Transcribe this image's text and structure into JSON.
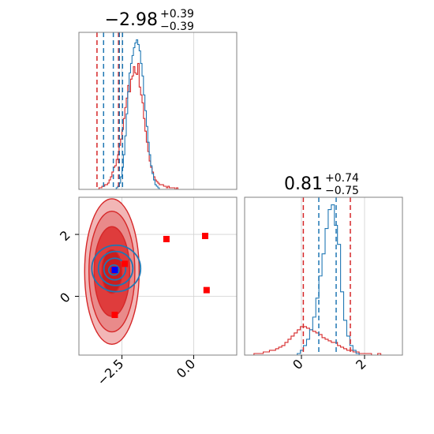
{
  "colors": {
    "blue": "#1f77b4",
    "red": "#d62728",
    "marker_red": "#ff0000",
    "marker_blue": "#0000ff",
    "grid": "#d0d0d0",
    "frame": "#808080"
  },
  "titles": {
    "p1": {
      "main": "−2.98",
      "sup": "+0.39",
      "sub": "−0.39"
    },
    "p2": {
      "main": "0.81",
      "sup": "+0.74",
      "sub": "−0.75"
    }
  },
  "ticks": {
    "x1": [
      {
        "v": -2.5,
        "label": "−2.5"
      },
      {
        "v": 0.0,
        "label": "0.0"
      }
    ],
    "y2": [
      {
        "v": 0,
        "label": "0"
      },
      {
        "v": 2,
        "label": "2"
      }
    ],
    "x2": [
      {
        "v": 0,
        "label": "0"
      },
      {
        "v": 2,
        "label": "2"
      }
    ]
  },
  "chart_data": [
    {
      "panel": "marginal-1",
      "type": "line",
      "xlim": [
        -4.0,
        1.5
      ],
      "x_range_hist": [
        -3.6,
        0.0
      ],
      "series": [
        {
          "color": "#d62728",
          "values": [
            0,
            0,
            0,
            0,
            0,
            0,
            1,
            1,
            2,
            2,
            3,
            3,
            4,
            6,
            8,
            11,
            14,
            15,
            19,
            22,
            28,
            32,
            38,
            45,
            52,
            58,
            66,
            62,
            70,
            72,
            78,
            74,
            73,
            80,
            65,
            60,
            55,
            45,
            37,
            30,
            24,
            18,
            14,
            11,
            8,
            6,
            5,
            4,
            3,
            3,
            3,
            2,
            2,
            1,
            2,
            1,
            1,
            1,
            1,
            0,
            1,
            0,
            0,
            0,
            0,
            0,
            0,
            0,
            0,
            0,
            0,
            0
          ]
        },
        {
          "color": "#1f77b4",
          "values": [
            0,
            0,
            0,
            0,
            0,
            0,
            0,
            0,
            0,
            0,
            0,
            0,
            0,
            0,
            0,
            0,
            0,
            0,
            1,
            2,
            4,
            8,
            14,
            22,
            34,
            48,
            62,
            74,
            80,
            85,
            90,
            93,
            95,
            92,
            88,
            80,
            72,
            60,
            50,
            40,
            30,
            22,
            15,
            10,
            6,
            3,
            2,
            1,
            0,
            0,
            0,
            0,
            0,
            0,
            0,
            0,
            0,
            0,
            0,
            0,
            0,
            0,
            0,
            0,
            0,
            0,
            0,
            0,
            0,
            0,
            0,
            0
          ]
        }
      ],
      "vlines": [
        {
          "x": -3.37,
          "color": "#d62728"
        },
        {
          "x": -2.62,
          "color": "#d62728"
        },
        {
          "x": -3.14,
          "color": "#1f77b4"
        },
        {
          "x": -2.59,
          "color": "#1f77b4"
        },
        {
          "x": -2.8,
          "color": "#1f77b4"
        },
        {
          "x": -2.48,
          "color": "#1f77b4"
        }
      ]
    },
    {
      "panel": "joint",
      "type": "scatter",
      "xlim": [
        -4.0,
        1.5
      ],
      "ylim": [
        -1.9,
        3.2
      ],
      "red_contours": [
        {
          "cx": -2.85,
          "cy": 0.8,
          "rx": 0.95,
          "ry": 2.35,
          "fill": "#f2b6b6"
        },
        {
          "cx": -2.85,
          "cy": 0.8,
          "rx": 0.8,
          "ry": 1.95,
          "fill": "#e98a8a"
        },
        {
          "cx": -2.85,
          "cy": 0.8,
          "rx": 0.62,
          "ry": 1.45,
          "fill": "#df3c3c"
        },
        {
          "cx": -2.85,
          "cy": 0.8,
          "rx": 0.35,
          "ry": 0.7,
          "fill": "#c91e1e"
        }
      ],
      "blue_contours": [
        {
          "cx": -2.7,
          "cy": 0.9,
          "rx": 0.85,
          "ry": 0.75
        },
        {
          "cx": -2.72,
          "cy": 0.9,
          "rx": 0.6,
          "ry": 0.55
        },
        {
          "cx": -2.75,
          "cy": 0.88,
          "rx": 0.38,
          "ry": 0.35
        },
        {
          "cx": -2.78,
          "cy": 0.85,
          "rx": 0.18,
          "ry": 0.16
        }
      ],
      "red_markers": [
        {
          "x": -2.75,
          "y": -0.6
        },
        {
          "x": -2.4,
          "y": 1.05
        },
        {
          "x": -0.95,
          "y": 1.85
        },
        {
          "x": 0.4,
          "y": 1.95
        },
        {
          "x": 0.45,
          "y": 0.2
        }
      ],
      "blue_markers": [
        {
          "x": -2.75,
          "y": 0.85
        }
      ]
    },
    {
      "panel": "marginal-2",
      "type": "line",
      "xlim": [
        -1.8,
        3.2
      ],
      "x_range_hist": [
        -1.7,
        3.2
      ],
      "series": [
        {
          "color": "#d62728",
          "values": [
            0,
            0,
            1,
            1,
            1,
            2,
            2,
            3,
            3,
            4,
            5,
            6,
            8,
            10,
            12,
            14,
            16,
            18,
            18,
            17,
            16,
            15,
            14,
            13,
            11,
            10,
            9,
            8,
            8,
            6,
            5,
            4,
            3,
            3,
            2,
            2,
            1,
            1,
            1,
            1,
            0,
            0,
            1,
            0,
            0,
            0,
            0,
            0,
            0,
            0
          ]
        },
        {
          "color": "#1f77b4",
          "values": [
            0,
            0,
            0,
            0,
            0,
            0,
            0,
            0,
            0,
            0,
            0,
            0,
            0,
            0,
            0,
            0,
            1,
            3,
            6,
            10,
            16,
            24,
            36,
            50,
            64,
            80,
            92,
            95,
            82,
            70,
            40,
            22,
            12,
            6,
            3,
            1,
            0,
            0,
            0,
            0,
            0,
            0,
            0,
            0,
            0,
            0,
            0,
            0,
            0,
            0
          ]
        }
      ],
      "vlines": [
        {
          "x": 0.06,
          "color": "#d62728"
        },
        {
          "x": 1.55,
          "color": "#d62728"
        },
        {
          "x": 0.55,
          "color": "#1f77b4"
        },
        {
          "x": 1.1,
          "color": "#1f77b4"
        }
      ]
    }
  ]
}
